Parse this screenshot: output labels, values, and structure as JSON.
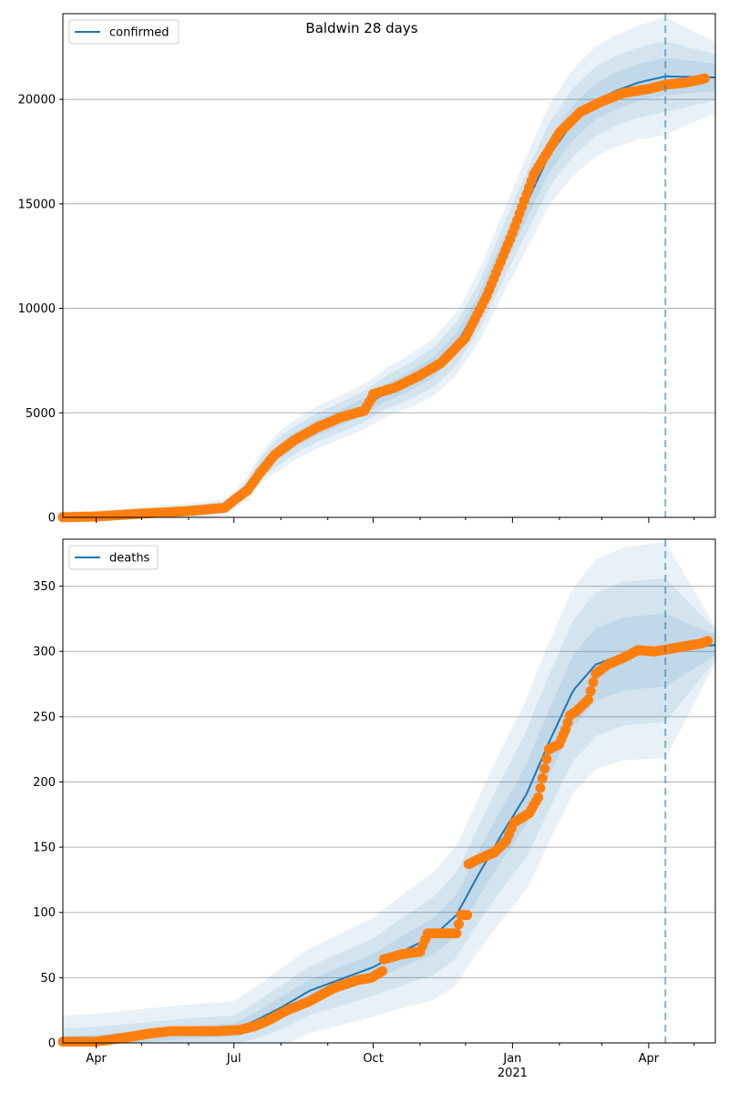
{
  "chart_data": {
    "title": "Baldwin 28 days",
    "type": "line",
    "x_axis": {
      "start": "2020-03-10",
      "end": "2021-05-15",
      "major_ticks": [
        {
          "date": "2020-04-01",
          "label": "Apr"
        },
        {
          "date": "2020-07-01",
          "label": "Jul"
        },
        {
          "date": "2020-10-01",
          "label": "Oct"
        },
        {
          "date": "2021-01-01",
          "label": "Jan"
        },
        {
          "date": "2021-04-01",
          "label": "Apr"
        }
      ],
      "year_label": {
        "date": "2021-01-01",
        "label": "2021"
      },
      "minor_tick_dates": [
        "2020-05-01",
        "2020-06-01",
        "2020-08-01",
        "2020-09-01",
        "2020-11-01",
        "2020-12-01",
        "2021-02-01",
        "2021-03-01",
        "2021-05-01"
      ]
    },
    "forecast_date": "2021-04-12",
    "colors": {
      "model": "#1f77b4",
      "observed": "#ff7f0e",
      "band": "#1f77b4",
      "grid": "#b0b0b0"
    },
    "panels": [
      {
        "id": "confirmed",
        "legend": "confirmed",
        "ylim": [
          0,
          24100
        ],
        "yticks": [
          0,
          5000,
          10000,
          15000,
          20000
        ],
        "model": [
          [
            "2020-03-10",
            5
          ],
          [
            "2020-04-01",
            40
          ],
          [
            "2020-05-01",
            150
          ],
          [
            "2020-06-01",
            300
          ],
          [
            "2020-06-25",
            480
          ],
          [
            "2020-07-01",
            800
          ],
          [
            "2020-07-10",
            1400
          ],
          [
            "2020-07-18",
            2300
          ],
          [
            "2020-07-28",
            3000
          ],
          [
            "2020-08-10",
            3700
          ],
          [
            "2020-08-25",
            4300
          ],
          [
            "2020-09-10",
            4800
          ],
          [
            "2020-09-25",
            5300
          ],
          [
            "2020-10-10",
            6000
          ],
          [
            "2020-10-25",
            6500
          ],
          [
            "2020-11-10",
            7200
          ],
          [
            "2020-11-25",
            8300
          ],
          [
            "2020-12-10",
            10100
          ],
          [
            "2020-12-25",
            12500
          ],
          [
            "2021-01-10",
            15000
          ],
          [
            "2021-01-25",
            17300
          ],
          [
            "2021-02-10",
            18900
          ],
          [
            "2021-02-25",
            19900
          ],
          [
            "2021-03-10",
            20400
          ],
          [
            "2021-03-25",
            20800
          ],
          [
            "2021-04-12",
            21100
          ],
          [
            "2021-05-15",
            21050
          ]
        ],
        "band_halfwidths": [
          [
            [
              "2020-03-10",
              100
            ],
            [
              "2020-07-01",
              150
            ],
            [
              "2020-08-01",
              350
            ],
            [
              "2020-10-01",
              400
            ],
            [
              "2020-12-01",
              550
            ],
            [
              "2021-01-15",
              800
            ],
            [
              "2021-02-15",
              850
            ],
            [
              "2021-04-12",
              900
            ],
            [
              "2021-05-15",
              650
            ]
          ],
          [
            [
              "2020-03-10",
              180
            ],
            [
              "2020-07-01",
              280
            ],
            [
              "2020-08-01",
              650
            ],
            [
              "2020-10-01",
              750
            ],
            [
              "2020-12-01",
              1050
            ],
            [
              "2021-01-15",
              1500
            ],
            [
              "2021-02-15",
              1650
            ],
            [
              "2021-04-12",
              1700
            ],
            [
              "2021-05-15",
              1100
            ]
          ],
          [
            [
              "2020-03-10",
              260
            ],
            [
              "2020-07-01",
              400
            ],
            [
              "2020-08-01",
              950
            ],
            [
              "2020-10-01",
              1100
            ],
            [
              "2020-12-01",
              1550
            ],
            [
              "2021-01-15",
              2300
            ],
            [
              "2021-02-15",
              2600
            ],
            [
              "2021-04-12",
              2800
            ],
            [
              "2021-05-15",
              1700
            ]
          ]
        ],
        "observed": [
          [
            "2020-03-10",
            8
          ],
          [
            "2020-04-01",
            40
          ],
          [
            "2020-05-01",
            180
          ],
          [
            "2020-06-01",
            300
          ],
          [
            "2020-06-25",
            460
          ],
          [
            "2020-07-01",
            820
          ],
          [
            "2020-07-10",
            1300
          ],
          [
            "2020-07-18",
            2100
          ],
          [
            "2020-07-28",
            3000
          ],
          [
            "2020-08-10",
            3700
          ],
          [
            "2020-08-25",
            4300
          ],
          [
            "2020-09-10",
            4800
          ],
          [
            "2020-09-25",
            5100
          ],
          [
            "2020-09-30",
            5700
          ],
          [
            "2020-10-01",
            5900
          ],
          [
            "2020-10-15",
            6200
          ],
          [
            "2020-11-01",
            6800
          ],
          [
            "2020-11-15",
            7400
          ],
          [
            "2020-12-01",
            8600
          ],
          [
            "2020-12-15",
            10600
          ],
          [
            "2021-01-01",
            13600
          ],
          [
            "2021-01-15",
            16400
          ],
          [
            "2021-02-01",
            18400
          ],
          [
            "2021-02-15",
            19400
          ],
          [
            "2021-03-01",
            19900
          ],
          [
            "2021-03-15",
            20300
          ],
          [
            "2021-04-01",
            20500
          ],
          [
            "2021-04-12",
            20700
          ],
          [
            "2021-04-25",
            20800
          ],
          [
            "2021-05-08",
            21000
          ]
        ]
      },
      {
        "id": "deaths",
        "legend": "deaths",
        "ylim": [
          0,
          386
        ],
        "yticks": [
          0,
          50,
          100,
          150,
          200,
          250,
          300,
          350
        ],
        "model": [
          [
            "2020-03-10",
            1
          ],
          [
            "2020-04-01",
            2
          ],
          [
            "2020-05-01",
            5
          ],
          [
            "2020-06-01",
            8
          ],
          [
            "2020-07-01",
            10
          ],
          [
            "2020-07-15",
            17
          ],
          [
            "2020-08-01",
            27
          ],
          [
            "2020-08-20",
            40
          ],
          [
            "2020-09-10",
            49
          ],
          [
            "2020-10-01",
            58
          ],
          [
            "2020-10-20",
            70
          ],
          [
            "2020-11-10",
            82
          ],
          [
            "2020-11-25",
            98
          ],
          [
            "2020-12-10",
            130
          ],
          [
            "2020-12-25",
            160
          ],
          [
            "2021-01-10",
            190
          ],
          [
            "2021-01-25",
            230
          ],
          [
            "2021-02-10",
            270
          ],
          [
            "2021-02-25",
            290
          ],
          [
            "2021-03-15",
            298
          ],
          [
            "2021-04-01",
            300
          ],
          [
            "2021-04-12",
            301
          ],
          [
            "2021-05-15",
            305
          ]
        ],
        "band_halfwidths": [
          [
            [
              "2020-03-10",
              4
            ],
            [
              "2020-07-01",
              5
            ],
            [
              "2020-08-01",
              8
            ],
            [
              "2020-10-01",
              10
            ],
            [
              "2020-12-01",
              16
            ],
            [
              "2021-01-15",
              24
            ],
            [
              "2021-02-20",
              28
            ],
            [
              "2021-04-12",
              28
            ],
            [
              "2021-05-15",
              8
            ]
          ],
          [
            [
              "2020-03-10",
              10
            ],
            [
              "2020-07-01",
              11
            ],
            [
              "2020-08-01",
              17
            ],
            [
              "2020-10-01",
              22
            ],
            [
              "2020-12-01",
              34
            ],
            [
              "2021-01-15",
              50
            ],
            [
              "2021-02-20",
              55
            ],
            [
              "2021-04-12",
              55
            ],
            [
              "2021-05-15",
              12
            ]
          ],
          [
            [
              "2020-03-10",
              20
            ],
            [
              "2020-07-01",
              22
            ],
            [
              "2020-08-01",
              30
            ],
            [
              "2020-10-01",
              38
            ],
            [
              "2020-12-01",
              55
            ],
            [
              "2021-01-15",
              75
            ],
            [
              "2021-02-20",
              80
            ],
            [
              "2021-04-12",
              83
            ],
            [
              "2021-05-15",
              14
            ]
          ]
        ],
        "observed": [
          [
            "2020-03-10",
            1
          ],
          [
            "2020-04-01",
            1
          ],
          [
            "2020-04-20",
            4
          ],
          [
            "2020-05-05",
            7
          ],
          [
            "2020-05-20",
            9
          ],
          [
            "2020-06-20",
            9
          ],
          [
            "2020-07-05",
            10
          ],
          [
            "2020-07-15",
            13
          ],
          [
            "2020-07-25",
            18
          ],
          [
            "2020-08-05",
            25
          ],
          [
            "2020-08-20",
            32
          ],
          [
            "2020-09-05",
            42
          ],
          [
            "2020-09-20",
            48
          ],
          [
            "2020-09-30",
            50
          ],
          [
            "2020-10-07",
            55
          ],
          [
            "2020-10-08",
            64
          ],
          [
            "2020-10-20",
            68
          ],
          [
            "2020-11-01",
            70
          ],
          [
            "2020-11-06",
            84
          ],
          [
            "2020-11-25",
            84
          ],
          [
            "2020-11-28",
            98
          ],
          [
            "2020-12-02",
            98
          ],
          [
            "2020-12-03",
            137
          ],
          [
            "2020-12-10",
            141
          ],
          [
            "2020-12-20",
            146
          ],
          [
            "2020-12-28",
            155
          ],
          [
            "2021-01-02",
            169
          ],
          [
            "2021-01-12",
            176
          ],
          [
            "2021-01-18",
            188
          ],
          [
            "2021-01-25",
            225
          ],
          [
            "2021-02-01",
            229
          ],
          [
            "2021-02-05",
            240
          ],
          [
            "2021-02-08",
            251
          ],
          [
            "2021-02-12",
            254
          ],
          [
            "2021-02-20",
            263
          ],
          [
            "2021-02-25",
            283
          ],
          [
            "2021-03-05",
            290
          ],
          [
            "2021-03-15",
            295
          ],
          [
            "2021-03-25",
            301
          ],
          [
            "2021-04-05",
            300
          ],
          [
            "2021-04-15",
            302
          ],
          [
            "2021-04-25",
            304
          ],
          [
            "2021-05-05",
            306
          ],
          [
            "2021-05-10",
            308
          ]
        ]
      }
    ]
  }
}
